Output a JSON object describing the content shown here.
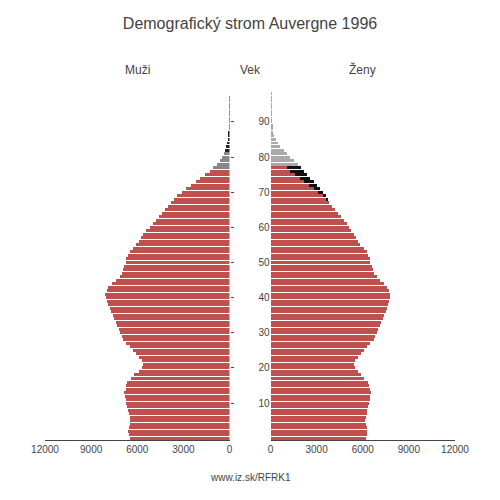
{
  "chart_data": [
    {
      "type": "bar",
      "orientation": "horizontal",
      "title": "Demografický strom Auvergne 1996",
      "subtitle": "Muži",
      "annotations": [
        "www.iz.sk/RFRK1"
      ],
      "categories": [
        0,
        1,
        2,
        3,
        4,
        5,
        6,
        7,
        8,
        9,
        10,
        11,
        12,
        13,
        14,
        15,
        16,
        17,
        18,
        19,
        20,
        21,
        22,
        23,
        24,
        25,
        26,
        27,
        28,
        29,
        30,
        31,
        32,
        33,
        34,
        35,
        36,
        37,
        38,
        39,
        40,
        41,
        42,
        43,
        44,
        45,
        46,
        47,
        48,
        49,
        50,
        51,
        52,
        53,
        54,
        55,
        56,
        57,
        58,
        59,
        60,
        61,
        62,
        63,
        64,
        65,
        66,
        67,
        68,
        69,
        70,
        71,
        72,
        73,
        74,
        75,
        76,
        77,
        78,
        79,
        80,
        81,
        82,
        83,
        84,
        85,
        86,
        87,
        88,
        89,
        90,
        91,
        92,
        93,
        94,
        95,
        96,
        97,
        98,
        99
      ],
      "series": [
        {
          "values": [
            6500,
            6550,
            6600,
            6550,
            6500,
            6450,
            6500,
            6550,
            6600,
            6650,
            6700,
            6750,
            6800,
            6850,
            6750,
            6700,
            6650,
            6400,
            6200,
            5900,
            5700,
            5600,
            5700,
            5900,
            6100,
            6300,
            6500,
            6700,
            6900,
            7000,
            7100,
            7200,
            7300,
            7400,
            7500,
            7600,
            7700,
            7800,
            7900,
            8000,
            8050,
            8100,
            8000,
            7900,
            7650,
            7400,
            7150,
            7000,
            6900,
            6850,
            6750,
            6700,
            6600,
            6500,
            6300,
            6100,
            5900,
            5750,
            5600,
            5400,
            5200,
            5000,
            4800,
            4600,
            4400,
            4200,
            4000,
            3800,
            3600,
            3400,
            3100,
            2800,
            2500,
            2200,
            1900,
            1600,
            1300,
            1050,
            800,
            650,
            500,
            380,
            280,
            200,
            140,
            90,
            60,
            40,
            25,
            15,
            8,
            5,
            3,
            2,
            1,
            1,
            1,
            1,
            0,
            0
          ],
          "colors": [
            "#c0504d",
            "#c0504d",
            "#c0504d",
            "#c0504d",
            "#c0504d",
            "#c0504d",
            "#c0504d",
            "#c0504d",
            "#c0504d",
            "#c0504d",
            "#c0504d",
            "#c0504d",
            "#c0504d",
            "#c0504d",
            "#c0504d",
            "#c0504d",
            "#c0504d",
            "#c0504d",
            "#c0504d",
            "#c0504d",
            "#c0504d",
            "#c0504d",
            "#c0504d",
            "#c0504d",
            "#c0504d",
            "#c0504d",
            "#c0504d",
            "#c0504d",
            "#c0504d",
            "#c0504d",
            "#c0504d",
            "#c0504d",
            "#c0504d",
            "#c0504d",
            "#c0504d",
            "#c0504d",
            "#c0504d",
            "#c0504d",
            "#c0504d",
            "#c0504d",
            "#c0504d",
            "#c0504d",
            "#c0504d",
            "#c0504d",
            "#c0504d",
            "#c0504d",
            "#c0504d",
            "#c0504d",
            "#c0504d",
            "#c0504d",
            "#c0504d",
            "#c0504d",
            "#c0504d",
            "#c0504d",
            "#c0504d",
            "#c0504d",
            "#c0504d",
            "#c0504d",
            "#c0504d",
            "#c0504d",
            "#c0504d",
            "#c0504d",
            "#c0504d",
            "#c0504d",
            "#c0504d",
            "#c0504d",
            "#c0504d",
            "#c0504d",
            "#c0504d",
            "#c0504d",
            "#c0504d",
            "#c0504d",
            "#c0504d",
            "#c0504d",
            "#c0504d",
            "#c0504d",
            "#c0504d",
            "#888888",
            "#888888",
            "#888888",
            "#888888",
            "#888888",
            "#222222",
            "#222222",
            "#222222",
            "#222222",
            "#222222",
            "#222222",
            "#222222",
            "#222222",
            "#222222",
            "#222222",
            "#222222",
            "#222222",
            "#222222",
            "#222222",
            "#222222",
            "#222222",
            "#222222",
            "#222222"
          ]
        }
      ],
      "xlim": [
        12000,
        0
      ],
      "xticks": [
        0,
        3000,
        6000,
        9000,
        12000
      ],
      "ylim": [
        -0.5,
        100.5
      ],
      "yticks": [
        10,
        20,
        30,
        40,
        50,
        60,
        70,
        80,
        90
      ],
      "tick_labels": "x",
      "grid": false
    },
    {
      "type": "bar",
      "orientation": "horizontal",
      "stacked": true,
      "subtitle": "Ženy",
      "ylabel": "Vek",
      "categories": [
        0,
        1,
        2,
        3,
        4,
        5,
        6,
        7,
        8,
        9,
        10,
        11,
        12,
        13,
        14,
        15,
        16,
        17,
        18,
        19,
        20,
        21,
        22,
        23,
        24,
        25,
        26,
        27,
        28,
        29,
        30,
        31,
        32,
        33,
        34,
        35,
        36,
        37,
        38,
        39,
        40,
        41,
        42,
        43,
        44,
        45,
        46,
        47,
        48,
        49,
        50,
        51,
        52,
        53,
        54,
        55,
        56,
        57,
        58,
        59,
        60,
        61,
        62,
        63,
        64,
        65,
        66,
        67,
        68,
        69,
        70,
        71,
        72,
        73,
        74,
        75,
        76,
        77,
        78,
        79,
        80,
        81,
        82,
        83,
        84,
        85,
        86,
        87,
        88,
        89,
        90,
        91,
        92,
        93,
        94,
        95,
        96,
        97,
        98,
        99
      ],
      "series": [
        {
          "values": [
            6200,
            6250,
            6300,
            6250,
            6200,
            6150,
            6200,
            6250,
            6300,
            6350,
            6400,
            6450,
            6500,
            6550,
            6450,
            6400,
            6350,
            6100,
            5900,
            5700,
            5500,
            5400,
            5500,
            5700,
            5900,
            6100,
            6300,
            6500,
            6700,
            6800,
            6900,
            7000,
            7100,
            7200,
            7300,
            7400,
            7500,
            7600,
            7650,
            7700,
            7750,
            7800,
            7700,
            7600,
            7350,
            7100,
            6900,
            6750,
            6650,
            6600,
            6500,
            6450,
            6350,
            6250,
            6050,
            5850,
            5700,
            5550,
            5400,
            5250,
            5100,
            4950,
            4750,
            4600,
            4400,
            4200,
            4000,
            3800,
            3600,
            3400,
            3100,
            2800,
            2500,
            2200,
            1900,
            1600,
            1300,
            1050,
            1800,
            1500,
            1300,
            1050,
            850,
            650,
            480,
            340,
            240,
            170,
            115,
            75,
            48,
            30,
            20,
            13,
            8,
            5,
            3,
            2,
            1,
            0
          ],
          "colors": [
            "#c0504d",
            "#c0504d",
            "#c0504d",
            "#c0504d",
            "#c0504d",
            "#c0504d",
            "#c0504d",
            "#c0504d",
            "#c0504d",
            "#c0504d",
            "#c0504d",
            "#c0504d",
            "#c0504d",
            "#c0504d",
            "#c0504d",
            "#c0504d",
            "#c0504d",
            "#c0504d",
            "#c0504d",
            "#c0504d",
            "#c0504d",
            "#c0504d",
            "#c0504d",
            "#c0504d",
            "#c0504d",
            "#c0504d",
            "#c0504d",
            "#c0504d",
            "#c0504d",
            "#c0504d",
            "#c0504d",
            "#c0504d",
            "#c0504d",
            "#c0504d",
            "#c0504d",
            "#c0504d",
            "#c0504d",
            "#c0504d",
            "#c0504d",
            "#c0504d",
            "#c0504d",
            "#c0504d",
            "#c0504d",
            "#c0504d",
            "#c0504d",
            "#c0504d",
            "#c0504d",
            "#c0504d",
            "#c0504d",
            "#c0504d",
            "#c0504d",
            "#c0504d",
            "#c0504d",
            "#c0504d",
            "#c0504d",
            "#c0504d",
            "#c0504d",
            "#c0504d",
            "#c0504d",
            "#c0504d",
            "#c0504d",
            "#c0504d",
            "#c0504d",
            "#c0504d",
            "#c0504d",
            "#c0504d",
            "#c0504d",
            "#c0504d",
            "#c0504d",
            "#c0504d",
            "#c0504d",
            "#c0504d",
            "#c0504d",
            "#c0504d",
            "#c0504d",
            "#c0504d",
            "#c0504d",
            "#c0504d",
            "#aaaaaa",
            "#aaaaaa",
            "#aaaaaa",
            "#aaaaaa",
            "#aaaaaa",
            "#aaaaaa",
            "#aaaaaa",
            "#aaaaaa",
            "#aaaaaa",
            "#aaaaaa",
            "#aaaaaa",
            "#aaaaaa",
            "#aaaaaa",
            "#aaaaaa",
            "#aaaaaa",
            "#aaaaaa",
            "#aaaaaa",
            "#aaaaaa",
            "#aaaaaa",
            "#aaaaaa",
            "#aaaaaa",
            "#aaaaaa"
          ]
        },
        {
          "values": [
            null,
            null,
            null,
            null,
            null,
            null,
            null,
            null,
            null,
            null,
            null,
            null,
            null,
            null,
            null,
            null,
            null,
            null,
            null,
            null,
            null,
            null,
            null,
            null,
            null,
            null,
            null,
            null,
            null,
            null,
            null,
            null,
            null,
            null,
            null,
            null,
            null,
            null,
            null,
            null,
            null,
            null,
            null,
            null,
            null,
            null,
            null,
            null,
            null,
            null,
            null,
            null,
            null,
            null,
            null,
            null,
            null,
            null,
            null,
            null,
            null,
            null,
            null,
            null,
            null,
            null,
            null,
            null,
            100,
            200,
            300,
            400,
            500,
            600,
            700,
            800,
            900,
            950,
            null,
            null,
            null,
            null,
            null,
            null,
            null,
            null,
            null,
            null,
            null,
            null,
            null,
            null,
            null,
            null,
            null,
            null,
            null,
            null,
            null,
            null
          ],
          "color": "#111111"
        }
      ],
      "xlim": [
        0,
        12000
      ],
      "xticks": [
        0,
        3000,
        6000,
        9000,
        12000
      ],
      "ylim": [
        -0.5,
        100.5
      ],
      "yticks": [
        10,
        20,
        30,
        40,
        50,
        60,
        70,
        80,
        90
      ],
      "tick_labels": true,
      "grid": false
    }
  ]
}
